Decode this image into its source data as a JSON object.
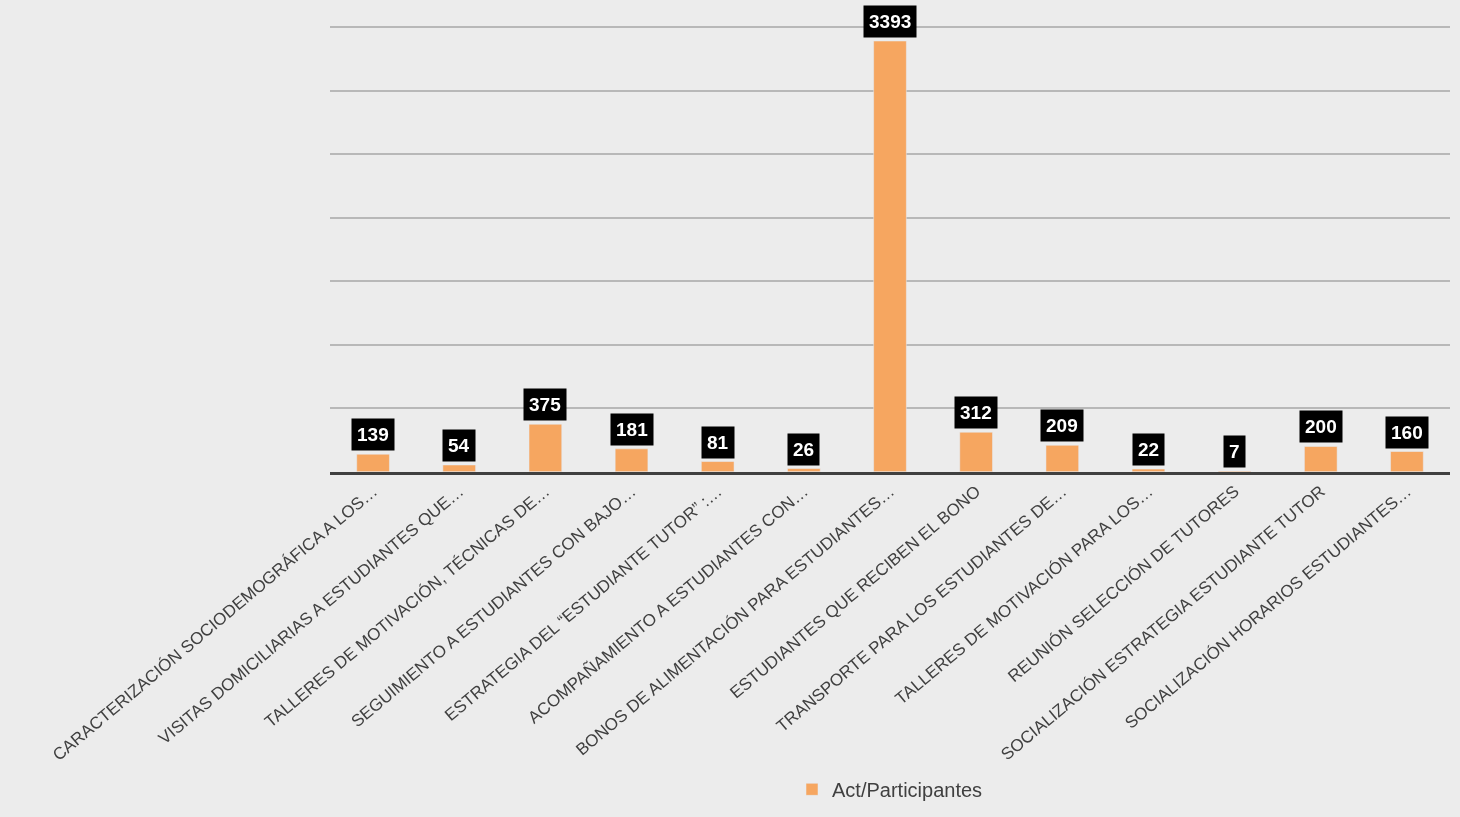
{
  "chart_data": {
    "type": "bar",
    "categories": [
      "CARACTERIZACIÓN SOCIODEMOGRÁFICA A LOS…",
      "VISITAS DOMICILIARIAS A ESTUDIANTES QUE…",
      "TALLERES DE MOTIVACIÓN, TÉCNICAS DE…",
      "SEGUIMIENTO A ESTUDIANTES CON BAJO…",
      "ESTRATEGIA DEL “ESTUDIANTE TUTOR” :…",
      "ACOMPAÑAMIENTO A ESTUDIANTES CON…",
      "BONOS DE ALIMENTACIÓN PARA ESTUDIANTES…",
      "ESTUDIANTES QUE RECIBEN EL BONO",
      "TRANSPORTE PARA LOS ESTUDIANTES DE…",
      "TALLERES DE MOTIVACIÓN PARA LOS…",
      "REUNIÓN SELECCIÓN DE TUTORES",
      "SOCIALIZACIÓN ESTRATEGIA ESTUDIANTE TUTOR",
      "SOCIALIZACIÓN HORARIOS ESTUDIANTES…"
    ],
    "series": [
      {
        "name": "Act/Participantes",
        "color": "#f6a660",
        "values": [
          139,
          54,
          375,
          181,
          81,
          26,
          3393,
          312,
          209,
          22,
          7,
          200,
          160
        ]
      }
    ],
    "tick_labels": "x",
    "grid": "y",
    "legend": "bottom",
    "data_labels": true
  }
}
